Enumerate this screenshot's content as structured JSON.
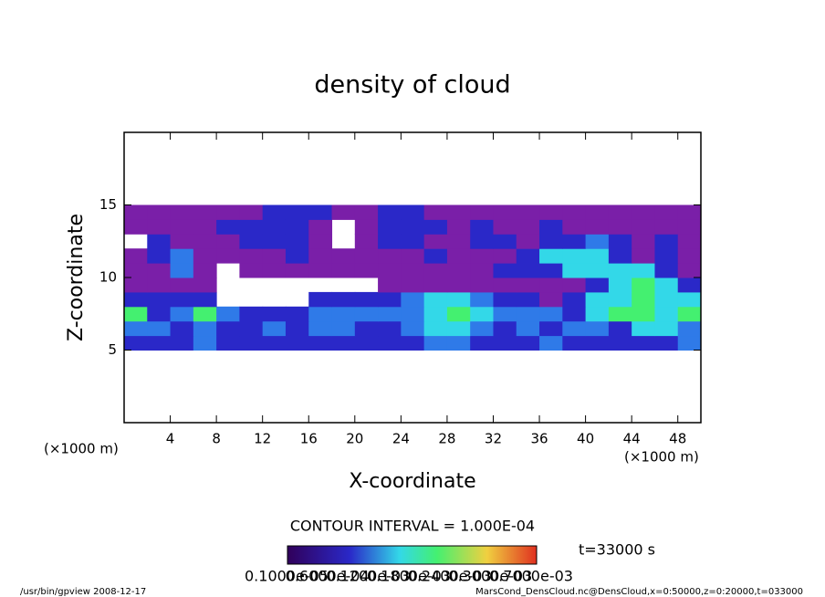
{
  "chart_data": {
    "type": "heatmap",
    "title": "density of cloud",
    "xlabel": "X-coordinate",
    "ylabel": "Z-coordinate",
    "x_unit_label": "(×1000 m)",
    "y_unit_label": "(×1000 m)",
    "xlim": [
      0,
      50
    ],
    "ylim": [
      0,
      20
    ],
    "xticks": [
      4,
      8,
      12,
      16,
      20,
      24,
      28,
      32,
      36,
      40,
      44,
      48
    ],
    "yticks": [
      5,
      10,
      15
    ],
    "grid_x_range": [
      0,
      50
    ],
    "grid_z_range": [
      5,
      15
    ],
    "levels": [
      0,
      2e-05,
      4e-05,
      7e-05,
      0.0001
    ],
    "level_colors": [
      "#7a1fa8",
      "#2a28c8",
      "#2f7ae8",
      "#33d8e8",
      "#44f070"
    ],
    "z_values": [
      [
        3e-05,
        3e-05,
        3e-05,
        5e-05,
        3e-05,
        3e-05,
        3e-05,
        3e-05,
        3e-05,
        3e-05,
        3e-05,
        3e-05,
        3e-05,
        5e-05,
        5e-05,
        3e-05,
        3e-05,
        3e-05,
        5e-05,
        3e-05,
        3e-05,
        3e-05,
        3e-05,
        3e-05,
        5e-05
      ],
      [
        5e-05,
        5e-05,
        3e-05,
        5e-05,
        3e-05,
        3e-05,
        5e-05,
        3e-05,
        5e-05,
        5e-05,
        3e-05,
        3e-05,
        5e-05,
        8e-05,
        8e-05,
        5e-05,
        3e-05,
        5e-05,
        3e-05,
        5e-05,
        5e-05,
        3e-05,
        8e-05,
        8e-05,
        5e-05
      ],
      [
        0.00012,
        3e-05,
        5e-05,
        0.00012,
        5e-05,
        3e-05,
        3e-05,
        3e-05,
        5e-05,
        5e-05,
        5e-05,
        5e-05,
        5e-05,
        8e-05,
        0.00012,
        8e-05,
        5e-05,
        5e-05,
        5e-05,
        3e-05,
        8e-05,
        0.00012,
        0.00012,
        8e-05,
        0.00012
      ],
      [
        3e-05,
        3e-05,
        3e-05,
        3e-05,
        null,
        null,
        null,
        null,
        3e-05,
        3e-05,
        3e-05,
        3e-05,
        5e-05,
        8e-05,
        8e-05,
        5e-05,
        3e-05,
        3e-05,
        1e-05,
        3e-05,
        8e-05,
        8e-05,
        0.00012,
        8e-05,
        8e-05
      ],
      [
        1e-05,
        1e-05,
        1e-05,
        1e-05,
        null,
        null,
        null,
        null,
        null,
        null,
        null,
        1e-05,
        1e-05,
        1e-05,
        1e-05,
        1e-05,
        1e-05,
        1e-05,
        1e-05,
        1e-05,
        3e-05,
        8e-05,
        0.00012,
        8e-05,
        3e-05
      ],
      [
        1e-05,
        1e-05,
        5e-05,
        1e-05,
        null,
        1e-05,
        1e-05,
        1e-05,
        1e-05,
        1e-05,
        1e-05,
        1e-05,
        1e-05,
        1e-05,
        1e-05,
        1e-05,
        3e-05,
        3e-05,
        3e-05,
        8e-05,
        8e-05,
        8e-05,
        8e-05,
        3e-05,
        1e-05
      ],
      [
        1e-05,
        3e-05,
        5e-05,
        1e-05,
        1e-05,
        1e-05,
        1e-05,
        3e-05,
        1e-05,
        1e-05,
        1e-05,
        1e-05,
        1e-05,
        3e-05,
        1e-05,
        1e-05,
        1e-05,
        3e-05,
        8e-05,
        8e-05,
        8e-05,
        3e-05,
        1e-05,
        3e-05,
        1e-05
      ],
      [
        null,
        3e-05,
        1e-05,
        1e-05,
        1e-05,
        3e-05,
        3e-05,
        3e-05,
        1e-05,
        null,
        1e-05,
        3e-05,
        3e-05,
        1e-05,
        1e-05,
        3e-05,
        3e-05,
        1e-05,
        3e-05,
        3e-05,
        5e-05,
        3e-05,
        1e-05,
        3e-05,
        1e-05
      ],
      [
        1e-05,
        1e-05,
        1e-05,
        1e-05,
        3e-05,
        3e-05,
        3e-05,
        3e-05,
        1e-05,
        null,
        1e-05,
        3e-05,
        3e-05,
        3e-05,
        1e-05,
        3e-05,
        1e-05,
        1e-05,
        3e-05,
        1e-05,
        1e-05,
        1e-05,
        1e-05,
        1e-05,
        1e-05
      ],
      [
        1e-05,
        1e-05,
        1e-05,
        1e-05,
        1e-05,
        1e-05,
        3e-05,
        3e-05,
        3e-05,
        1e-05,
        1e-05,
        3e-05,
        3e-05,
        1e-05,
        1e-05,
        1e-05,
        1e-05,
        1e-05,
        1e-05,
        1e-05,
        1e-05,
        1e-05,
        1e-05,
        1e-05,
        1e-05
      ]
    ],
    "contour_interval": "CONTOUR INTERVAL = 1.000E-04",
    "time_label": "t=33000 s",
    "colorbar_labels": [
      "0.1000e-05",
      "0.6000e-04",
      "0.1200e-03",
      "0.1800e-03",
      "0.2400e-03",
      "0.3000e-03",
      "0.7000e-03"
    ],
    "footer_left": "/usr/bin/gpview   2008-12-17",
    "footer_right": "MarsCond_DensCloud.nc@DensCloud,x=0:50000,z=0:20000,t=033000"
  }
}
